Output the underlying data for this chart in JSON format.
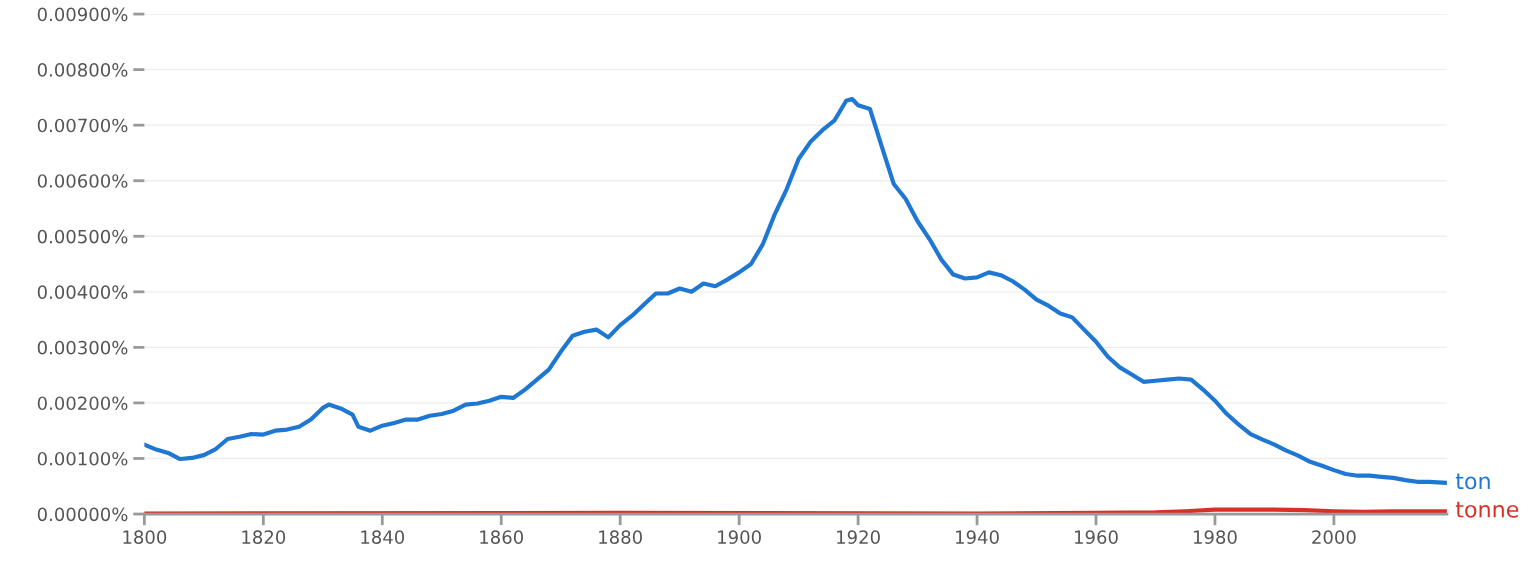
{
  "chart_data": {
    "type": "line",
    "x": [
      1800,
      1802,
      1804,
      1806,
      1808,
      1810,
      1812,
      1814,
      1816,
      1818,
      1820,
      1822,
      1824,
      1826,
      1828,
      1830,
      1831,
      1833,
      1835,
      1836,
      1838,
      1840,
      1842,
      1844,
      1846,
      1848,
      1850,
      1852,
      1854,
      1856,
      1858,
      1860,
      1862,
      1864,
      1866,
      1868,
      1870,
      1872,
      1874,
      1876,
      1878,
      1880,
      1882,
      1884,
      1886,
      1888,
      1890,
      1892,
      1894,
      1896,
      1898,
      1900,
      1902,
      1904,
      1906,
      1908,
      1910,
      1912,
      1914,
      1916,
      1918,
      1919,
      1920,
      1922,
      1924,
      1926,
      1928,
      1930,
      1932,
      1934,
      1936,
      1938,
      1940,
      1942,
      1944,
      1946,
      1948,
      1950,
      1952,
      1954,
      1956,
      1958,
      1960,
      1962,
      1964,
      1966,
      1968,
      1970,
      1972,
      1974,
      1976,
      1978,
      1980,
      1982,
      1984,
      1986,
      1988,
      1990,
      1992,
      1994,
      1996,
      1998,
      2000,
      2002,
      2004,
      2006,
      2008,
      2010,
      2012,
      2014,
      2016,
      2019
    ],
    "series": [
      {
        "name": "ton",
        "color": "#1f77d4",
        "values": [
          0.00125,
          0.00116,
          0.0011,
          0.00099,
          0.00101,
          0.00106,
          0.00117,
          0.00135,
          0.00139,
          0.00144,
          0.00143,
          0.0015,
          0.00152,
          0.00157,
          0.0017,
          0.00191,
          0.00197,
          0.0019,
          0.00179,
          0.00157,
          0.0015,
          0.00159,
          0.00164,
          0.0017,
          0.0017,
          0.00177,
          0.0018,
          0.00186,
          0.00197,
          0.00199,
          0.00204,
          0.00211,
          0.00209,
          0.00224,
          0.00242,
          0.0026,
          0.00292,
          0.00321,
          0.00328,
          0.00332,
          0.00318,
          0.0034,
          0.00357,
          0.00377,
          0.00397,
          0.00397,
          0.00406,
          0.004,
          0.00415,
          0.0041,
          0.00422,
          0.00435,
          0.0045,
          0.00486,
          0.0054,
          0.00585,
          0.00639,
          0.0067,
          0.00691,
          0.00708,
          0.00744,
          0.00747,
          0.00736,
          0.00729,
          0.00661,
          0.00594,
          0.00567,
          0.00527,
          0.00495,
          0.00458,
          0.00431,
          0.00424,
          0.00426,
          0.00435,
          0.0043,
          0.00419,
          0.00404,
          0.00386,
          0.00375,
          0.00361,
          0.00354,
          0.00332,
          0.0031,
          0.00283,
          0.00264,
          0.00251,
          0.00238,
          0.0024,
          0.00242,
          0.00244,
          0.00242,
          0.00224,
          0.00204,
          0.0018,
          0.00161,
          0.00144,
          0.00134,
          0.00125,
          0.00114,
          0.00105,
          0.00094,
          0.00087,
          0.00079,
          0.00072,
          0.00069,
          0.00069,
          0.00067,
          0.00065,
          0.00061,
          0.00058,
          0.00058,
          0.00056
        ]
      },
      {
        "name": "tonne",
        "color": "#d93025",
        "x": [
          1800,
          1880,
          1940,
          1960,
          1970,
          1975,
          1980,
          1985,
          1990,
          1995,
          2000,
          2005,
          2010,
          2019
        ],
        "values": [
          1e-05,
          2e-05,
          1e-05,
          2e-05,
          3e-05,
          5e-05,
          8e-05,
          8e-05,
          8e-05,
          7e-05,
          5e-05,
          4e-05,
          5e-05,
          5e-05
        ]
      }
    ],
    "xlim": [
      1800,
      2019
    ],
    "xticks": [
      1800,
      1820,
      1840,
      1860,
      1880,
      1900,
      1920,
      1940,
      1960,
      1980,
      2000
    ],
    "ylim": [
      0,
      0.009
    ],
    "yticks": [
      {
        "value": 0,
        "label": "0.00000%"
      },
      {
        "value": 0.001,
        "label": "0.00100%"
      },
      {
        "value": 0.002,
        "label": "0.00200%"
      },
      {
        "value": 0.003,
        "label": "0.00300%"
      },
      {
        "value": 0.004,
        "label": "0.00400%"
      },
      {
        "value": 0.005,
        "label": "0.00500%"
      },
      {
        "value": 0.006,
        "label": "0.00600%"
      },
      {
        "value": 0.007,
        "label": "0.00700%"
      },
      {
        "value": 0.008,
        "label": "0.00800%"
      },
      {
        "value": 0.009,
        "label": "0.00900%"
      }
    ],
    "grid": "y",
    "legend": false,
    "marker": "none",
    "line_style": "solid"
  }
}
